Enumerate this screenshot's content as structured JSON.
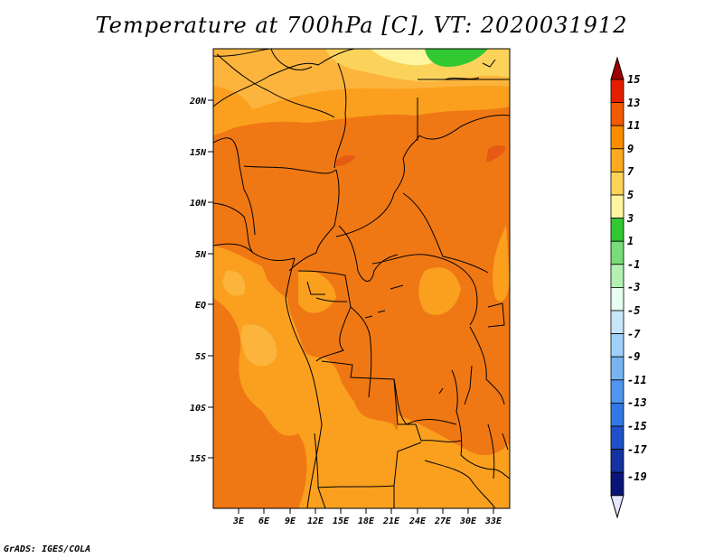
{
  "title": "Temperature at 700hPa [C], VT: 2020031912",
  "credit": "GrADS: IGES/COLA",
  "map": {
    "lat_labels": [
      "20N",
      "15N",
      "10N",
      "5N",
      "EQ",
      "5S",
      "10S",
      "15S"
    ],
    "lon_labels": [
      "3E",
      "6E",
      "9E",
      "12E",
      "15E",
      "18E",
      "21E",
      "24E",
      "27E",
      "30E",
      "33E"
    ]
  },
  "colorbar": {
    "labels": [
      "15",
      "13",
      "11",
      "9",
      "7",
      "5",
      "3",
      "1",
      "-1",
      "-3",
      "-5",
      "-7",
      "-9",
      "-11",
      "-13",
      "-15",
      "-17",
      "-19"
    ],
    "colors": [
      "#a00000",
      "#e61e00",
      "#f05a00",
      "#fa8c00",
      "#faaa1e",
      "#fcd35a",
      "#fff5a0",
      "#32c832",
      "#78dc78",
      "#b4f0b4",
      "#e6fff0",
      "#c8e6f8",
      "#a0d0f8",
      "#78b4f0",
      "#5096f0",
      "#3278e6",
      "#1e50c8",
      "#1432a0",
      "#0a1478",
      "#e6e6ff"
    ],
    "bottom_arrow_color": "#e6e6ff"
  },
  "colors": {
    "dark_orange": "#f07814",
    "mid_orange": "#faa01e",
    "light_orange": "#fcb43c",
    "yellow": "#fcd35a",
    "pale_yellow": "#fff5a0",
    "green": "#32c832",
    "boundary": "#000000"
  }
}
